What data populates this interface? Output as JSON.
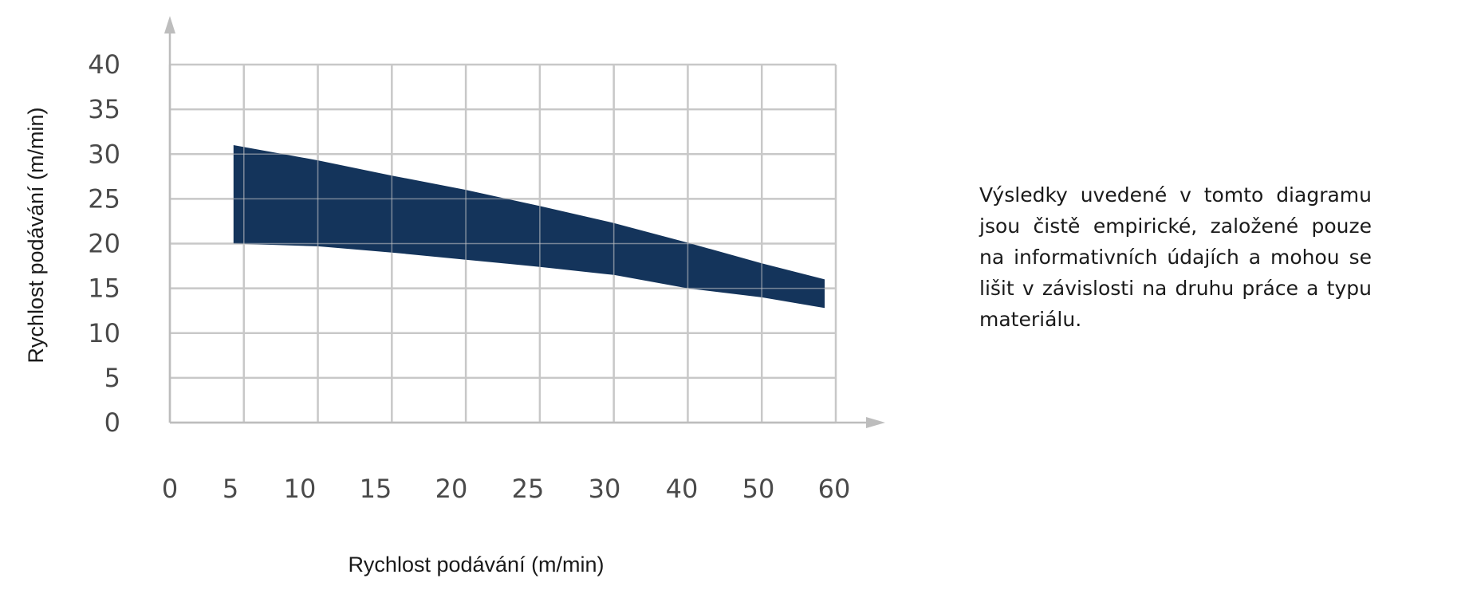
{
  "chart_data": {
    "type": "area",
    "xlabel": "Rychlost podávání  (m/min)",
    "ylabel": "Rychlost podávání  (m/min)",
    "x_ticks": [
      "0",
      "5",
      "10",
      "15",
      "20",
      "25",
      "30",
      "40",
      "50",
      "60"
    ],
    "y_ticks": [
      "0",
      "5",
      "10",
      "15",
      "20",
      "25",
      "30",
      "35",
      "40"
    ],
    "ylim": [
      0,
      40
    ],
    "grid": true,
    "band": {
      "x": [
        "4.3",
        "10",
        "15",
        "20",
        "25",
        "30",
        "40",
        "50",
        "58.5"
      ],
      "upper": [
        31,
        29.3,
        27.6,
        26,
        24.2,
        22.3,
        20.1,
        17.8,
        16
      ],
      "lower": [
        20,
        19.7,
        19,
        18.2,
        17.4,
        16.5,
        15,
        14,
        12.8
      ]
    },
    "colors": {
      "band": "#14345b",
      "grid": "#c8c8c8",
      "axis": "#bdbdbd"
    }
  },
  "note": "Výsledky uvedené v tomto diagramu jsou čistě empirické, založené pouze na informativních údajích a mohou se lišit v závislosti na druhu práce a typu materiálu."
}
